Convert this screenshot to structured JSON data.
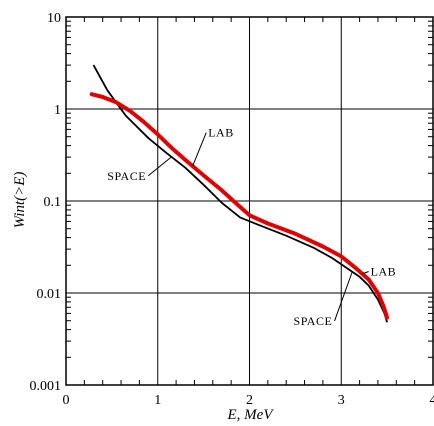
{
  "chart_data": {
    "type": "line",
    "xlabel": "E, MeV",
    "ylabel": "Wint(>E)",
    "xlim": [
      0,
      4
    ],
    "ylim": [
      0.001,
      10
    ],
    "y_scale": "log",
    "grid": true,
    "x_ticks": [
      "0",
      "1",
      "2",
      "3",
      "4"
    ],
    "y_ticks": [
      {
        "value": 10,
        "label": "10"
      },
      {
        "value": 1,
        "label": "1"
      },
      {
        "value": 0.1,
        "label": "0.1"
      },
      {
        "value": 0.01,
        "label": "0.01"
      },
      {
        "value": 0.001,
        "label": "0.001"
      }
    ],
    "series": [
      {
        "name": "SPACE",
        "color": "#000000",
        "style": "solid",
        "points": [
          [
            0.3,
            3.0
          ],
          [
            0.45,
            1.6
          ],
          [
            0.65,
            0.85
          ],
          [
            0.9,
            0.48
          ],
          [
            1.1,
            0.33
          ],
          [
            1.3,
            0.23
          ],
          [
            1.5,
            0.15
          ],
          [
            1.7,
            0.095
          ],
          [
            1.9,
            0.066
          ],
          [
            2.1,
            0.055
          ],
          [
            2.4,
            0.042
          ],
          [
            2.7,
            0.031
          ],
          [
            2.9,
            0.024
          ],
          [
            3.05,
            0.019
          ],
          [
            3.2,
            0.015
          ],
          [
            3.3,
            0.012
          ],
          [
            3.4,
            0.0085
          ],
          [
            3.47,
            0.006
          ],
          [
            3.5,
            0.0048
          ]
        ]
      },
      {
        "name": "LAB",
        "color": "#e60000",
        "style": "dotted-thick",
        "points": [
          [
            0.28,
            1.45
          ],
          [
            0.4,
            1.35
          ],
          [
            0.55,
            1.18
          ],
          [
            0.7,
            0.95
          ],
          [
            0.85,
            0.72
          ],
          [
            1.0,
            0.53
          ],
          [
            1.15,
            0.38
          ],
          [
            1.3,
            0.28
          ],
          [
            1.5,
            0.19
          ],
          [
            1.7,
            0.13
          ],
          [
            1.85,
            0.095
          ],
          [
            2.0,
            0.07
          ],
          [
            2.2,
            0.057
          ],
          [
            2.5,
            0.044
          ],
          [
            2.8,
            0.032
          ],
          [
            3.0,
            0.025
          ],
          [
            3.15,
            0.019
          ],
          [
            3.3,
            0.014
          ],
          [
            3.4,
            0.01
          ],
          [
            3.46,
            0.0072
          ],
          [
            3.5,
            0.0054
          ]
        ]
      }
    ],
    "annotations": [
      {
        "text": "LAB",
        "x": 1.55,
        "y": 0.5
      },
      {
        "text": "SPACE",
        "x": 0.45,
        "y": 0.17
      },
      {
        "text": "LAB",
        "x": 3.32,
        "y": 0.0155
      },
      {
        "text": "SPACE",
        "x": 2.48,
        "y": 0.0045
      }
    ]
  }
}
